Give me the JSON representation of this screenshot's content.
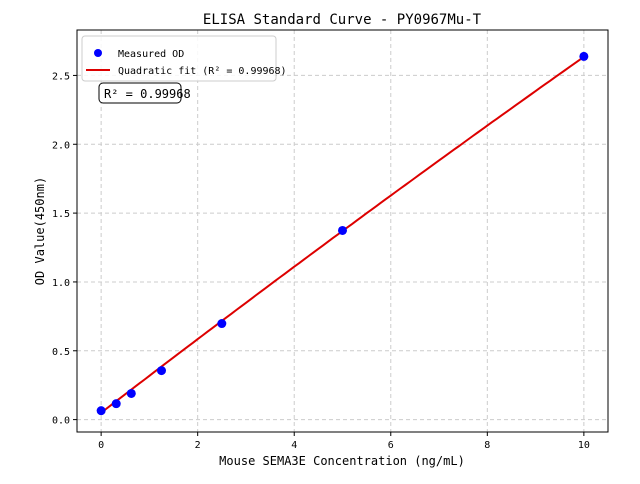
{
  "chart_data": {
    "type": "scatter",
    "title": "ELISA Standard Curve - PY0967Mu-T",
    "xlabel": "Mouse SEMA3E Concentration (ng/mL)",
    "ylabel": "OD Value(450nm)",
    "xlim": [
      -0.5,
      10.5
    ],
    "ylim": [
      -0.09,
      2.83
    ],
    "xticks": [
      0,
      2,
      4,
      6,
      8,
      10
    ],
    "yticks": [
      0.0,
      0.5,
      1.0,
      1.5,
      2.0,
      2.5
    ],
    "grid": true,
    "legend_position": "top-left",
    "series": [
      {
        "name": "Measured OD",
        "kind": "scatter",
        "color": "#0000ff",
        "x": [
          0,
          0.3125,
          0.625,
          1.25,
          2.5,
          5,
          10
        ],
        "y": [
          0.065,
          0.116,
          0.19,
          0.356,
          0.698,
          1.374,
          2.638
        ]
      },
      {
        "name": "Quadratic fit (R² = 0.99968)",
        "kind": "line",
        "color": "#dd0000"
      }
    ],
    "annotation": "R² = 0.99968"
  }
}
